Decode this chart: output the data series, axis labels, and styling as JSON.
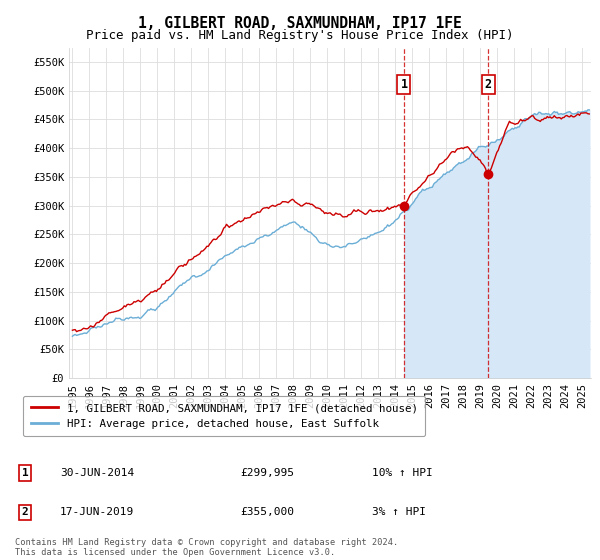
{
  "title": "1, GILBERT ROAD, SAXMUNDHAM, IP17 1FE",
  "subtitle": "Price paid vs. HM Land Registry's House Price Index (HPI)",
  "ylabel_ticks": [
    "£0",
    "£50K",
    "£100K",
    "£150K",
    "£200K",
    "£250K",
    "£300K",
    "£350K",
    "£400K",
    "£450K",
    "£500K",
    "£550K"
  ],
  "ytick_values": [
    0,
    50000,
    100000,
    150000,
    200000,
    250000,
    300000,
    350000,
    400000,
    450000,
    500000,
    550000
  ],
  "ylim": [
    0,
    575000
  ],
  "xlim_start": 1994.8,
  "xlim_end": 2025.5,
  "hpi_line_color": "#6baed6",
  "hpi_fill_color": "#d6e8f7",
  "price_line_color": "#cc0000",
  "sale1_x": 2014.5,
  "sale1_y": 299995,
  "sale1_label": "1",
  "sale1_date": "30-JUN-2014",
  "sale1_price": "£299,995",
  "sale1_hpi": "10% ↑ HPI",
  "sale2_x": 2019.46,
  "sale2_y": 355000,
  "sale2_label": "2",
  "sale2_date": "17-JUN-2019",
  "sale2_price": "£355,000",
  "sale2_hpi": "3% ↑ HPI",
  "legend_line1": "1, GILBERT ROAD, SAXMUNDHAM, IP17 1FE (detached house)",
  "legend_line2": "HPI: Average price, detached house, East Suffolk",
  "footer": "Contains HM Land Registry data © Crown copyright and database right 2024.\nThis data is licensed under the Open Government Licence v3.0.",
  "background_color": "#ffffff",
  "grid_color": "#dddddd",
  "title_fontsize": 10.5,
  "subtitle_fontsize": 9,
  "tick_fontsize": 7.5
}
